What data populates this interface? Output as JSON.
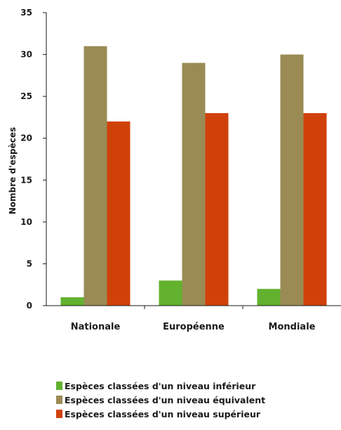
{
  "chart_data": {
    "type": "bar",
    "categories": [
      "Nationale",
      "Européenne",
      "Mondiale"
    ],
    "series": [
      {
        "name": "Espèces classées d'un niveau inférieur",
        "color": "#62b22f",
        "values": [
          1,
          3,
          2
        ]
      },
      {
        "name": "Espèces classées d'un niveau équivalent",
        "color": "#9a8b55",
        "values": [
          31,
          29,
          30
        ]
      },
      {
        "name": "Espèces classées d'un niveau supérieur",
        "color": "#d0410a",
        "values": [
          22,
          23,
          23
        ]
      }
    ],
    "title": "",
    "xlabel": "",
    "ylabel": "Nombre d'espèces",
    "ylim": [
      0,
      35
    ],
    "yticks": [
      0,
      5,
      10,
      15,
      20,
      25,
      30,
      35
    ],
    "grid": false,
    "legend_position": "bottom"
  }
}
